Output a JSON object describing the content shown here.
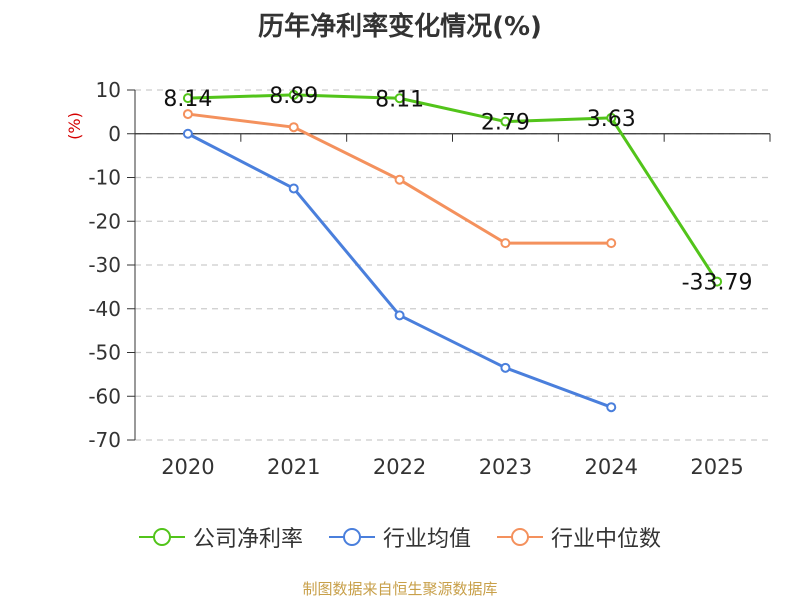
{
  "chart_data": {
    "type": "line",
    "title": "历年净利率变化情况(%)",
    "ylabel": "(%)",
    "xlabel": "",
    "categories": [
      "2020",
      "2021",
      "2022",
      "2023",
      "2024",
      "2025"
    ],
    "ylim": [
      -70,
      10
    ],
    "yticks": [
      10,
      0,
      -10,
      -20,
      -30,
      -40,
      -50,
      -60,
      -70
    ],
    "grid": true,
    "legend_position": "bottom",
    "series": [
      {
        "name": "公司净利率",
        "color": "#52c41a",
        "values": [
          8.14,
          8.89,
          8.11,
          2.79,
          3.63,
          -33.79
        ],
        "labels": [
          "8.14",
          "8.89",
          "8.11",
          "2.79",
          "3.63",
          "-33.79"
        ]
      },
      {
        "name": "行业均值",
        "color": "#4a7fdc",
        "values": [
          0.0,
          -12.5,
          -41.5,
          -53.5,
          -62.5,
          null
        ]
      },
      {
        "name": "行业中位数",
        "color": "#f4915d",
        "values": [
          4.5,
          1.5,
          -10.5,
          -25.0,
          -25.0,
          null
        ]
      }
    ]
  },
  "source": "制图数据来自恒生聚源数据库"
}
